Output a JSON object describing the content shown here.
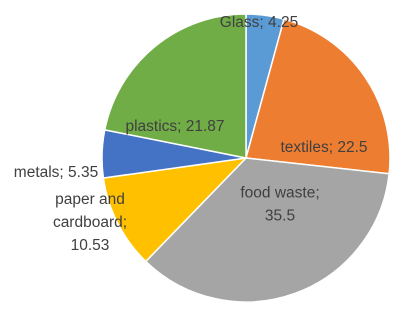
{
  "chart_data": {
    "type": "pie",
    "title": "",
    "slices": [
      {
        "label": "Glass",
        "value": 4.25,
        "label_lines": [
          "Glass; 4.25"
        ],
        "color": "#5B9BD5"
      },
      {
        "label": "textiles",
        "value": 22.5,
        "label_lines": [
          "textiles; 22.5"
        ],
        "color": "#ED7D31"
      },
      {
        "label": "food waste",
        "value": 35.5,
        "label_lines": [
          "food waste;",
          "35.5"
        ],
        "color": "#A5A5A5"
      },
      {
        "label": "paper and cardboard",
        "value": 10.53,
        "label_lines": [
          "paper and",
          "cardboard;",
          "10.53"
        ],
        "color": "#FFC000"
      },
      {
        "label": "metals",
        "value": 5.35,
        "label_lines": [
          "metals; 5.35"
        ],
        "color": "#4472C4"
      },
      {
        "label": "plastics",
        "value": 21.87,
        "label_lines": [
          "plastics; 21.87"
        ],
        "color": "#70AD47"
      }
    ],
    "legend": "none",
    "start_angle": "12 o'clock",
    "direction": "clockwise"
  }
}
